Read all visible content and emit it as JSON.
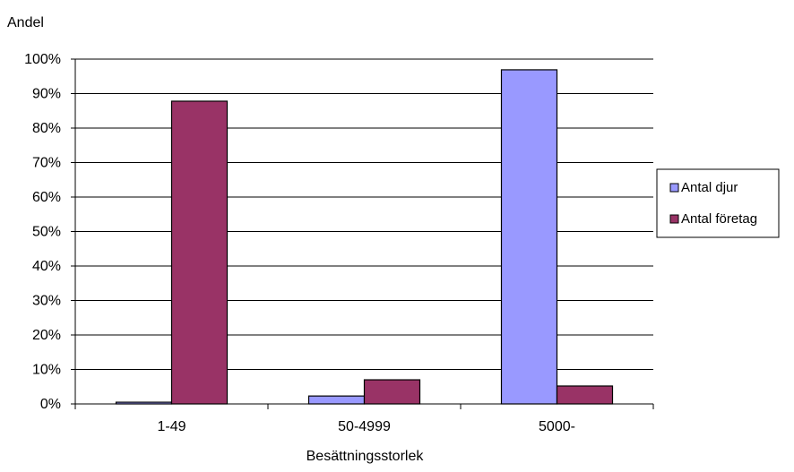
{
  "chart_data": {
    "type": "bar",
    "ylabel": "Andel",
    "xlabel": "Besättningsstorlek",
    "categories": [
      "1-49",
      "50-4999",
      "5000-"
    ],
    "series": [
      {
        "name": "Antal djur",
        "color": "#9999ff",
        "values": [
          0.5,
          2.3,
          96.9
        ]
      },
      {
        "name": "Antal företag",
        "color": "#993366",
        "values": [
          87.8,
          7.0,
          5.2
        ]
      }
    ],
    "ylim": [
      0,
      100
    ],
    "yticks": [
      0,
      10,
      20,
      30,
      40,
      50,
      60,
      70,
      80,
      90,
      100
    ],
    "ytick_labels": [
      "0%",
      "10%",
      "20%",
      "30%",
      "40%",
      "50%",
      "60%",
      "70%",
      "80%",
      "90%",
      "100%"
    ],
    "grid": true,
    "legend": "right"
  }
}
